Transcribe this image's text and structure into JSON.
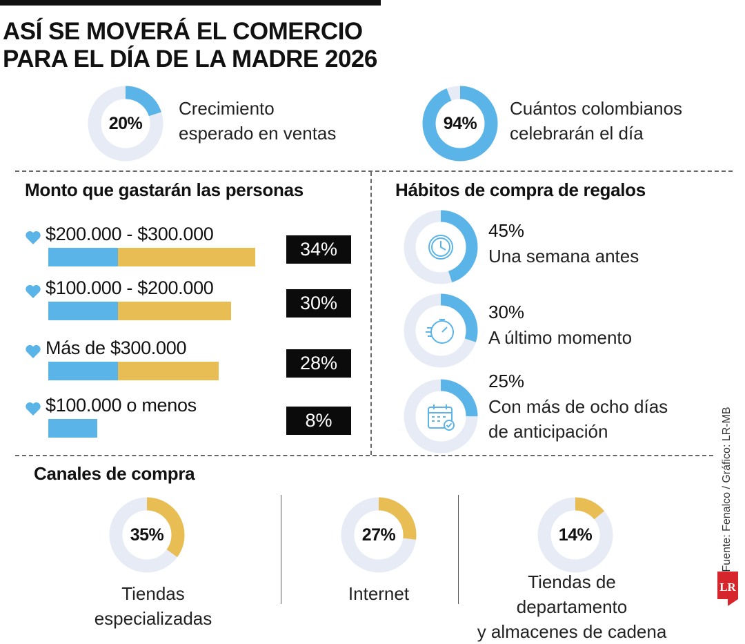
{
  "title": {
    "line1": "ASÍ SE MOVERÁ EL COMERCIO",
    "line2": "PARA EL DÍA DE LA MADRE 2026"
  },
  "kpis": [
    {
      "value": "20%",
      "percent": 20,
      "label_line1": "Crecimiento",
      "label_line2": "esperado en ventas"
    },
    {
      "value": "94%",
      "percent": 94,
      "label_line1": "Cuántos colombianos",
      "label_line2": "celebrarán el día"
    }
  ],
  "spending": {
    "title": "Monto que gastarán las personas",
    "rows": [
      {
        "label": "$200.000 - $300.000",
        "value": "34%",
        "percent": 34
      },
      {
        "label": "$100.000 - $200.000",
        "value": "30%",
        "percent": 30
      },
      {
        "label": "Más de $300.000",
        "value": "28%",
        "percent": 28
      },
      {
        "label": "$100.000 o menos",
        "value": "8%",
        "percent": 8
      }
    ]
  },
  "habits": {
    "title": "Hábitos de compra de regalos",
    "items": [
      {
        "value": "45%",
        "percent": 45,
        "label_line1": "Una semana antes",
        "label_line2": "",
        "icon": "clock-icon"
      },
      {
        "value": "30%",
        "percent": 30,
        "label_line1": "A último momento",
        "label_line2": "",
        "icon": "stopwatch-icon"
      },
      {
        "value": "25%",
        "percent": 25,
        "label_line1": "Con más de ocho días",
        "label_line2": "de anticipación",
        "icon": "calendar-check-icon"
      }
    ]
  },
  "channels": {
    "title": "Canales de compra",
    "items": [
      {
        "value": "35%",
        "percent": 35,
        "label_line1": "Tiendas especializadas",
        "label_line2": ""
      },
      {
        "value": "27%",
        "percent": 27,
        "label_line1": "Internet",
        "label_line2": ""
      },
      {
        "value": "14%",
        "percent": 14,
        "label_line1": "Tiendas de departamento",
        "label_line2": "y almacenes de cadena"
      }
    ]
  },
  "credit": "Fuente: Fenalco / Gráfico: LR-MB",
  "logo_text": "LR",
  "colors": {
    "blue": "#5AB4E8",
    "track": "#E6EBF5",
    "gold": "#E8BD53",
    "dark": "#0B0B0B",
    "logo_red": "#D7262B"
  },
  "chart_data": [
    {
      "type": "pie",
      "title": "",
      "categories": [
        "Crecimiento esperado en ventas"
      ],
      "values": [
        20
      ]
    },
    {
      "type": "pie",
      "title": "",
      "categories": [
        "Cuántos colombianos celebrarán el día"
      ],
      "values": [
        94
      ]
    },
    {
      "type": "bar",
      "title": "Monto que gastarán las personas",
      "categories": [
        "$200.000 - $300.000",
        "$100.000 - $200.000",
        "Más de $300.000",
        "$100.000 o menos"
      ],
      "values": [
        34,
        30,
        28,
        8
      ]
    },
    {
      "type": "pie",
      "title": "Hábitos de compra de regalos",
      "categories": [
        "Una semana antes",
        "A último momento",
        "Con más de ocho días de anticipación"
      ],
      "values": [
        45,
        30,
        25
      ]
    },
    {
      "type": "pie",
      "title": "Canales de compra",
      "categories": [
        "Tiendas especializadas",
        "Internet",
        "Tiendas de departamento y almacenes de cadena"
      ],
      "values": [
        35,
        27,
        14
      ]
    }
  ]
}
